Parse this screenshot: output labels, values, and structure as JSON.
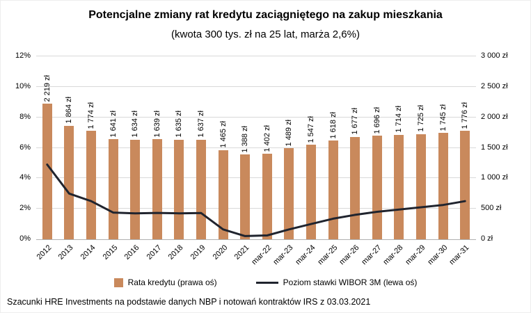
{
  "title": "Potencjalne zmiany rat kredytu zaciągniętego na zakup mieszkania",
  "subtitle": "(kwota 300 tys. zł na 25 lat, marża 2,6%)",
  "footer": "Szacunki HRE Investments na podstawie danych NBP i notowań kontraktów IRS z 03.03.2021",
  "chart_data": {
    "type": "bar+line",
    "categories": [
      "2012",
      "2013",
      "2014",
      "2015",
      "2016",
      "2017",
      "2018",
      "2019",
      "2020",
      "2021",
      "mar-22",
      "mar-23",
      "mar-24",
      "mar-25",
      "mar-26",
      "mar-27",
      "mar-28",
      "mar-29",
      "mar-30",
      "mar-31"
    ],
    "series": [
      {
        "name": "Rata kredytu (prawa oś)",
        "type": "bar",
        "axis": "right",
        "color": "#c9895c",
        "values": [
          2219,
          1864,
          1774,
          1641,
          1634,
          1639,
          1635,
          1637,
          1465,
          1388,
          1402,
          1489,
          1547,
          1618,
          1677,
          1696,
          1714,
          1725,
          1745,
          1776
        ],
        "labels": [
          "2 219 zł",
          "1 864 zł",
          "1 774 zł",
          "1 641 zł",
          "1 634 zł",
          "1 639 zł",
          "1 635 zł",
          "1 637 zł",
          "1 465 zł",
          "1 388 zł",
          "1 402 zł",
          "1 489 zł",
          "1 547 zł",
          "1 618 zł",
          "1 677 zł",
          "1 696 zł",
          "1 714 zł",
          "1 725 zł",
          "1 745 zł",
          "1 776 zł"
        ]
      },
      {
        "name": "Poziom stawki WIBOR 3M (lewa oś)",
        "type": "line",
        "axis": "left",
        "color": "#20242e",
        "values": [
          4.9,
          3.0,
          2.5,
          1.75,
          1.7,
          1.73,
          1.7,
          1.72,
          0.65,
          0.21,
          0.25,
          0.65,
          1.0,
          1.35,
          1.6,
          1.8,
          1.95,
          2.1,
          2.25,
          2.5
        ]
      }
    ],
    "left_axis": {
      "min": 0,
      "max": 12,
      "ticks": [
        "0%",
        "2%",
        "4%",
        "6%",
        "8%",
        "10%",
        "12%"
      ]
    },
    "right_axis": {
      "min": 0,
      "max": 3000,
      "ticks": [
        "0 zł",
        "500 zł",
        "1 000 zł",
        "1 500 zł",
        "2 000 zł",
        "2 500 zł",
        "3 000 zł"
      ]
    },
    "grid": true,
    "legend_position": "bottom",
    "gridline_color": "#d9d9d9"
  }
}
